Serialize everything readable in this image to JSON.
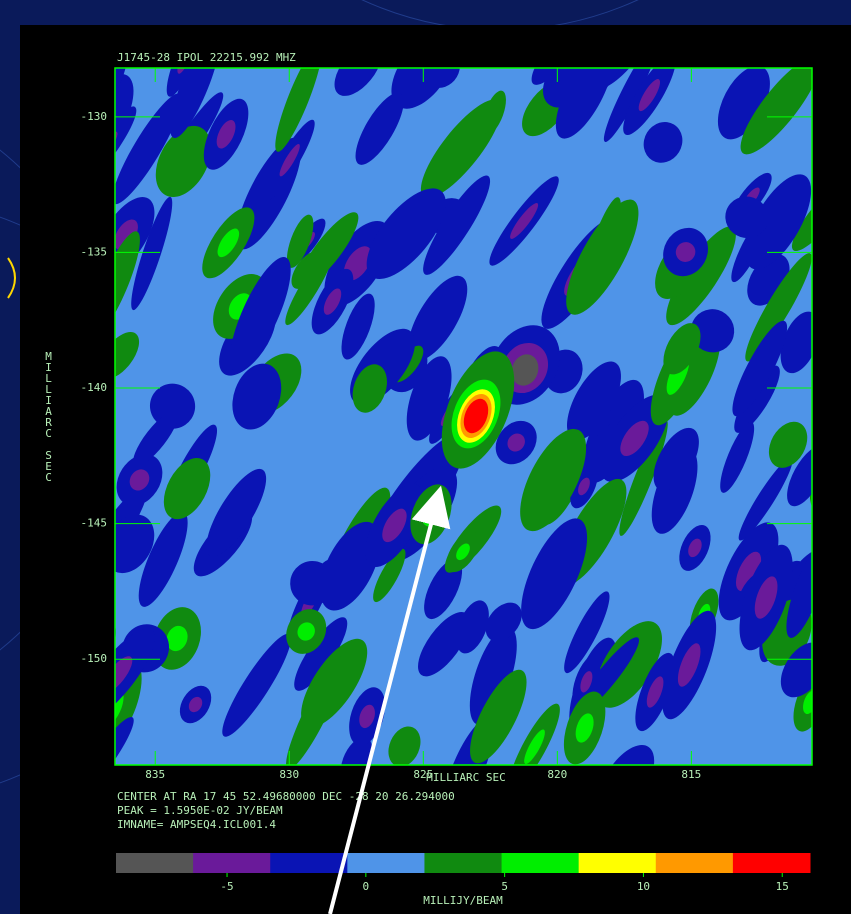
{
  "chart_data": {
    "type": "image",
    "title": "J1745-28 IPOL  22215.992 MHZ",
    "x_label": "MILLIARC SEC",
    "y_label": "MILLIARC SEC",
    "xlim": [
      836.5,
      810.5
    ],
    "xticks": [
      835,
      830,
      825,
      820,
      815
    ],
    "ylim": [
      -128.2,
      -153.9
    ],
    "yticks": [
      -130,
      -135,
      -140,
      -145,
      -150
    ],
    "info": [
      "CENTER AT RA 17 45 52.49680000  DEC -28 20 26.294000",
      "PEAK =  1.5950E-02 JY/BEAM",
      "IMNAME= AMPSEQ4.ICL001.4"
    ],
    "colorbar": {
      "label": "MILLIJY/BEAM",
      "lim": [
        -9,
        16
      ],
      "ticks": [
        -5,
        0,
        5,
        10,
        15
      ],
      "colors": [
        "#555555",
        "#6a1a9a",
        "#0a14b4",
        "#4f94e8",
        "#108a10",
        "#00ee00",
        "#ffff00",
        "#ff9900",
        "#ff0000"
      ]
    }
  }
}
